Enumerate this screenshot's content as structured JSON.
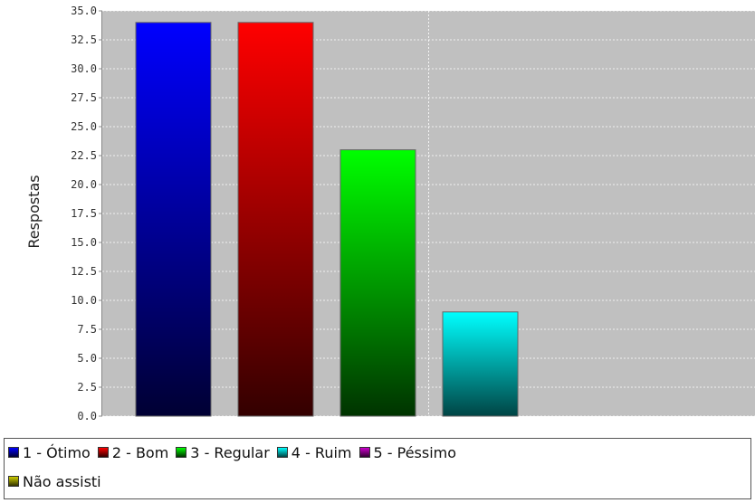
{
  "chart_data": {
    "type": "bar",
    "title": "",
    "xlabel": "",
    "ylabel": "Respostas",
    "ylim": [
      0,
      35
    ],
    "y_ticks": [
      "0.0",
      "2.5",
      "5.0",
      "7.5",
      "10.0",
      "12.5",
      "15.0",
      "17.5",
      "20.0",
      "22.5",
      "25.0",
      "27.5",
      "30.0",
      "32.5",
      "35.0"
    ],
    "grid": true,
    "legend_position": "bottom",
    "series": [
      {
        "name": "1 - Ótimo",
        "value": 34,
        "color": "#0000ff",
        "dark": "#000033"
      },
      {
        "name": "2 - Bom",
        "value": 34,
        "color": "#ff0000",
        "dark": "#330000"
      },
      {
        "name": "3 - Regular",
        "value": 23,
        "color": "#00ff00",
        "dark": "#003300"
      },
      {
        "name": "4 - Ruim",
        "value": 9,
        "color": "#00ffff",
        "dark": "#004444"
      },
      {
        "name": "5 - Péssimo",
        "value": 0,
        "color": "#cc00cc",
        "dark": "#330033"
      },
      {
        "name": "Não assisti",
        "value": 0,
        "color": "#cccc00",
        "dark": "#333300"
      }
    ]
  }
}
